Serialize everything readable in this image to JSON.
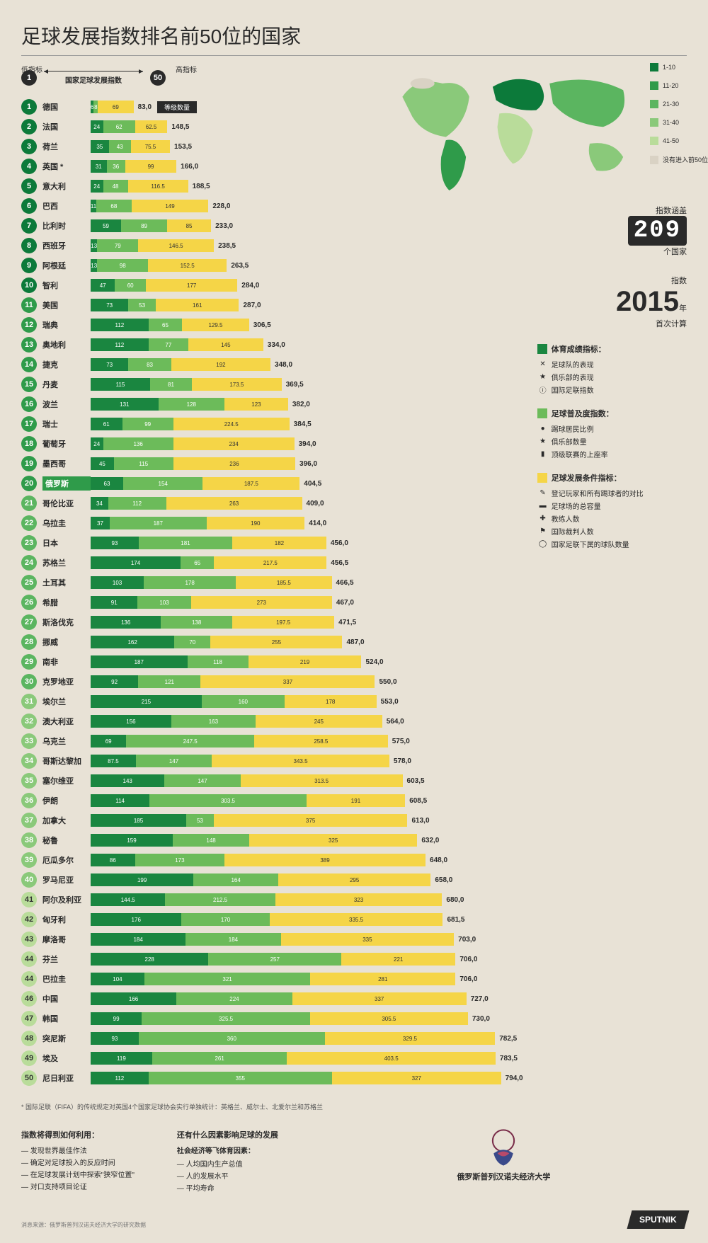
{
  "title": "足球发展指数排名前50位的国家",
  "scale": {
    "low": "1",
    "high": "50",
    "low_label": "低指标",
    "high_label": "高指标",
    "mid_label": "国家足球发展指数"
  },
  "level_badge": "等级数量",
  "bar_max": 800,
  "colors": {
    "seg_a": "#1a8640",
    "seg_b": "#6cbb5a",
    "seg_c": "#f5d547",
    "rank_tiers": [
      "#0c7a3a",
      "#2f9b4a",
      "#5bb560",
      "#8ac97a",
      "#b9dc9a"
    ],
    "bg": "#e8e2d6"
  },
  "countries": [
    {
      "rank": 1,
      "name": "德国",
      "a": 6,
      "b": 8,
      "c": 69,
      "total": "83,0"
    },
    {
      "rank": 2,
      "name": "法国",
      "a": 24,
      "b": 62,
      "c": 62.5,
      "total": "148,5"
    },
    {
      "rank": 3,
      "name": "荷兰",
      "a": 35,
      "b": 43,
      "c": 75.5,
      "total": "153,5"
    },
    {
      "rank": 4,
      "name": "英国 *",
      "a": 31,
      "b": 36,
      "c": 99,
      "total": "166,0"
    },
    {
      "rank": 5,
      "name": "意大利",
      "a": 24,
      "b": 48,
      "c": 116.5,
      "total": "188,5"
    },
    {
      "rank": 6,
      "name": "巴西",
      "a": 11,
      "b": 68,
      "c": 149,
      "total": "228,0"
    },
    {
      "rank": 7,
      "name": "比利时",
      "a": 59,
      "b": 89,
      "c": 85,
      "total": "233,0"
    },
    {
      "rank": 8,
      "name": "西班牙",
      "a": 13,
      "b": 79,
      "c": 146.5,
      "total": "238,5"
    },
    {
      "rank": 9,
      "name": "阿根廷",
      "a": 13,
      "b": 98,
      "c": 152.5,
      "total": "263,5"
    },
    {
      "rank": 10,
      "name": "智利",
      "a": 47,
      "b": 60,
      "c": 177,
      "total": "284,0"
    },
    {
      "rank": 11,
      "name": "美国",
      "a": 73,
      "b": 53,
      "c": 161,
      "total": "287,0"
    },
    {
      "rank": 12,
      "name": "瑞典",
      "a": 112,
      "b": 65,
      "c": 129.5,
      "total": "306,5"
    },
    {
      "rank": 13,
      "name": "奥地利",
      "a": 112,
      "b": 77,
      "c": 145,
      "total": "334,0"
    },
    {
      "rank": 14,
      "name": "捷克",
      "a": 73,
      "b": 83,
      "c": 192,
      "total": "348,0"
    },
    {
      "rank": 15,
      "name": "丹麦",
      "a": 115,
      "b": 81,
      "c": 173.5,
      "total": "369,5"
    },
    {
      "rank": 16,
      "name": "波兰",
      "a": 131,
      "b": 128,
      "c": 123,
      "total": "382,0"
    },
    {
      "rank": 17,
      "name": "瑞士",
      "a": 61,
      "b": 99,
      "c": 224.5,
      "total": "384,5"
    },
    {
      "rank": 18,
      "name": "葡萄牙",
      "a": 24,
      "b": 136,
      "c": 234,
      "total": "394,0"
    },
    {
      "rank": 19,
      "name": "墨西哥",
      "a": 45,
      "b": 115,
      "c": 236,
      "total": "396,0"
    },
    {
      "rank": 20,
      "name": "俄罗斯",
      "a": 63,
      "b": 154,
      "c": 187.5,
      "total": "404,5",
      "highlight": true
    },
    {
      "rank": 21,
      "name": "哥伦比亚",
      "a": 34,
      "b": 112,
      "c": 263,
      "total": "409,0"
    },
    {
      "rank": 22,
      "name": "乌拉圭",
      "a": 37,
      "b": 187,
      "c": 190,
      "total": "414,0"
    },
    {
      "rank": 23,
      "name": "日本",
      "a": 93,
      "b": 181,
      "c": 182,
      "total": "456,0"
    },
    {
      "rank": 24,
      "name": "苏格兰",
      "a": 174,
      "b": 65,
      "c": 217.5,
      "total": "456,5"
    },
    {
      "rank": 25,
      "name": "土耳其",
      "a": 103,
      "b": 178,
      "c": 185.5,
      "total": "466,5"
    },
    {
      "rank": 26,
      "name": "希腊",
      "a": 91,
      "b": 103,
      "c": 273,
      "total": "467,0"
    },
    {
      "rank": 27,
      "name": "斯洛伐克",
      "a": 136,
      "b": 138,
      "c": 197.5,
      "total": "471,5"
    },
    {
      "rank": 28,
      "name": "挪威",
      "a": 162,
      "b": 70,
      "c": 255,
      "total": "487,0"
    },
    {
      "rank": 29,
      "name": "南非",
      "a": 187,
      "b": 118,
      "c": 219,
      "total": "524,0"
    },
    {
      "rank": 30,
      "name": "克罗地亚",
      "a": 92,
      "b": 121,
      "c": 337,
      "total": "550,0"
    },
    {
      "rank": 31,
      "name": "埃尔兰",
      "a": 215,
      "b": 160,
      "c": 178,
      "total": "553,0"
    },
    {
      "rank": 32,
      "name": "澳大利亚",
      "a": 156,
      "b": 163,
      "c": 245,
      "total": "564,0"
    },
    {
      "rank": 33,
      "name": "乌克兰",
      "a": 69,
      "b": 247.5,
      "c": 258.5,
      "total": "575,0"
    },
    {
      "rank": 34,
      "name": "哥斯达黎加",
      "a": 87.5,
      "b": 147,
      "c": 343.5,
      "total": "578,0"
    },
    {
      "rank": 35,
      "name": "塞尔维亚",
      "a": 143,
      "b": 147,
      "c": 313.5,
      "total": "603,5"
    },
    {
      "rank": 36,
      "name": "伊朗",
      "a": 114,
      "b": 303.5,
      "c": 191,
      "total": "608,5"
    },
    {
      "rank": 37,
      "name": "加拿大",
      "a": 185,
      "b": 53,
      "c": 375,
      "total": "613,0"
    },
    {
      "rank": 38,
      "name": "秘鲁",
      "a": 159,
      "b": 148,
      "c": 325,
      "total": "632,0"
    },
    {
      "rank": 39,
      "name": "厄瓜多尔",
      "a": 86,
      "b": 173,
      "c": 389,
      "total": "648,0"
    },
    {
      "rank": 40,
      "name": "罗马尼亚",
      "a": 199,
      "b": 164,
      "c": 295,
      "total": "658,0"
    },
    {
      "rank": 41,
      "name": "阿尔及利亚",
      "a": 144.5,
      "b": 212.5,
      "c": 323,
      "total": "680,0"
    },
    {
      "rank": 42,
      "name": "匈牙利",
      "a": 176,
      "b": 170,
      "c": 335.5,
      "total": "681,5"
    },
    {
      "rank": 43,
      "name": "摩洛哥",
      "a": 184,
      "b": 184,
      "c": 335,
      "total": "703,0"
    },
    {
      "rank": 44,
      "name": "芬兰",
      "a": 228,
      "b": 257,
      "c": 221,
      "total": "706,0"
    },
    {
      "rank": 44,
      "name": "巴拉圭",
      "a": 104,
      "b": 321,
      "c": 281,
      "total": "706,0"
    },
    {
      "rank": 46,
      "name": "中国",
      "a": 166,
      "b": 224,
      "c": 337,
      "total": "727,0"
    },
    {
      "rank": 47,
      "name": "韩国",
      "a": 99,
      "b": 325.5,
      "c": 305.5,
      "total": "730,0"
    },
    {
      "rank": 48,
      "name": "突尼斯",
      "a": 93,
      "b": 360,
      "c": 329.5,
      "total": "782,5"
    },
    {
      "rank": 49,
      "name": "埃及",
      "a": 119,
      "b": 261,
      "c": 403.5,
      "total": "783,5"
    },
    {
      "rank": 50,
      "name": "尼日利亚",
      "a": 112,
      "b": 355,
      "c": 327,
      "total": "794,0"
    }
  ],
  "map_legend": [
    {
      "color": "#0c7a3a",
      "label": "1-10"
    },
    {
      "color": "#2f9b4a",
      "label": "11-20"
    },
    {
      "color": "#5bb560",
      "label": "21-30"
    },
    {
      "color": "#8ac97a",
      "label": "31-40"
    },
    {
      "color": "#b9dc9a",
      "label": "41-50"
    },
    {
      "color": "#d9d2c4",
      "label": "没有进入前50位"
    }
  ],
  "info": {
    "counter_top": "指数涵盖",
    "counter_value": "209",
    "counter_bottom": "个国家",
    "year_prefix": "指数",
    "year": "2015",
    "year_suffix": "年",
    "year_sub": "首次计算"
  },
  "legends": [
    {
      "color": "#1a8640",
      "title": "体育成绩指标：",
      "items": [
        {
          "icon": "✕",
          "text": "足球队的表现"
        },
        {
          "icon": "★",
          "text": "俱乐部的表现"
        },
        {
          "icon": "ⓘ",
          "text": "国际足联指数"
        }
      ]
    },
    {
      "color": "#6cbb5a",
      "title": "足球普及度指数：",
      "items": [
        {
          "icon": "●",
          "text": "踢球居民比例"
        },
        {
          "icon": "★",
          "text": "俱乐部数量"
        },
        {
          "icon": "▮",
          "text": "顶级联赛的上座率"
        }
      ]
    },
    {
      "color": "#f5d547",
      "title": "足球发展条件指标：",
      "items": [
        {
          "icon": "✎",
          "text": "登记玩家和所有踢球者的对比"
        },
        {
          "icon": "▬",
          "text": "足球场的总容量"
        },
        {
          "icon": "✚",
          "text": "教练人数"
        },
        {
          "icon": "⚑",
          "text": "国际裁判人数"
        },
        {
          "icon": "◯",
          "text": "国家足联下属的球队数量"
        }
      ]
    }
  ],
  "footnote": "* 国际足联（FIFA）的传统规定对英国4个国家足球协会实行单独统计：英格兰、威尔士、北爱尔兰和苏格兰",
  "footer": {
    "col1_title": "指数将得到如何利用：",
    "col1_items": [
      "— 发现世界最佳作法",
      "— 确定对足球投入的反应时间",
      "— 在足球发展计划中探索\"狭窄位置\"",
      "— 对口支持项目论证"
    ],
    "col2_title": "还有什么因素影响足球的发展",
    "col2_sub": "社会经济等飞体育因素：",
    "col2_items": [
      "— 人均国内生产总值",
      "— 人的发展水平",
      "— 平均寿命"
    ],
    "university": "俄罗斯普列汉诺夫经济大学",
    "brand": "SPUTNIK",
    "source": "消息来源：俄罗斯普列汉诺夫经济大学的研究数据"
  }
}
